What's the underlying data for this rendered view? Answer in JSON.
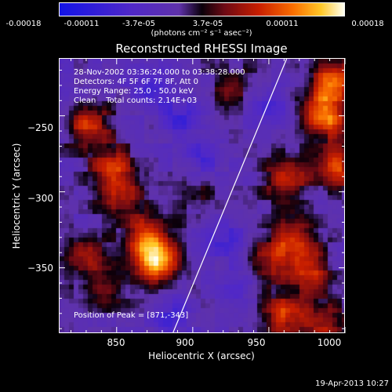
{
  "colorbar": {
    "tick_labels": [
      "-0.00018",
      "-0.00011",
      "-3.7e-05",
      "3.7e-05",
      "0.00011",
      "0.00018"
    ],
    "unit_label": "(photons cm⁻² s⁻¹ asec⁻²)",
    "range": [
      -0.00018,
      0.00018
    ]
  },
  "chart_data": {
    "type": "heatmap",
    "title": "Reconstructed RHESSI Image",
    "xlabel": "Heliocentric X (arcsec)",
    "ylabel": "Heliocentric Y (arcsec)",
    "xlim": [
      812,
      1000
    ],
    "ylim": [
      -393,
      -212
    ],
    "x_ticks": [
      850,
      900,
      950,
      1000
    ],
    "y_ticks": [
      -250,
      -300,
      -350
    ],
    "x_tick_labels": [
      "850",
      "900",
      "950",
      "1000"
    ],
    "y_tick_labels": [
      "−250",
      "−300",
      "−350"
    ],
    "limb_line": [
      [
        887,
        -393
      ],
      [
        962,
        -212
      ]
    ],
    "peak": [
      871,
      -343
    ],
    "hot_spots": [
      {
        "x": 830,
        "y": -255,
        "level": 0.6
      },
      {
        "x": 845,
        "y": -282,
        "level": 0.55
      },
      {
        "x": 852,
        "y": -300,
        "level": 0.5
      },
      {
        "x": 876,
        "y": -345,
        "level": 0.9
      },
      {
        "x": 868,
        "y": -330,
        "level": 0.7
      },
      {
        "x": 825,
        "y": -340,
        "level": 0.4
      },
      {
        "x": 840,
        "y": -360,
        "level": 0.35
      },
      {
        "x": 900,
        "y": -300,
        "level": 0.25
      },
      {
        "x": 985,
        "y": -248,
        "level": 0.85
      },
      {
        "x": 992,
        "y": -225,
        "level": 0.7
      },
      {
        "x": 960,
        "y": -290,
        "level": 0.55
      },
      {
        "x": 995,
        "y": -282,
        "level": 0.6
      },
      {
        "x": 965,
        "y": -330,
        "level": 0.6
      },
      {
        "x": 975,
        "y": -350,
        "level": 0.55
      },
      {
        "x": 960,
        "y": -380,
        "level": 0.6
      },
      {
        "x": 945,
        "y": -345,
        "level": 0.45
      },
      {
        "x": 925,
        "y": -230,
        "level": 0.3
      },
      {
        "x": 985,
        "y": -385,
        "level": 0.5
      }
    ],
    "cold_spots": [
      {
        "x": 870,
        "y": -230,
        "level": 0.6
      },
      {
        "x": 890,
        "y": -250,
        "level": 0.5
      },
      {
        "x": 905,
        "y": -275,
        "level": 0.5
      },
      {
        "x": 885,
        "y": -380,
        "level": 0.5
      },
      {
        "x": 930,
        "y": -360,
        "level": 0.4
      },
      {
        "x": 950,
        "y": -240,
        "level": 0.4
      },
      {
        "x": 920,
        "y": -330,
        "level": 0.45
      }
    ],
    "annotations": {
      "time_range": "28-Nov-2002 03:36:24.000 to 03:38:28.000",
      "detectors": "Detectors: 4F 5F 6F 7F 8F, Att 0",
      "energy": "Energy Range: 25.0 - 50.0 keV",
      "method": "Clean    Total counts: 2.14E+03",
      "peak_text": "Position of Peak = [871,-343]"
    }
  },
  "footer": {
    "timestamp": "19-Apr-2013 10:27"
  }
}
